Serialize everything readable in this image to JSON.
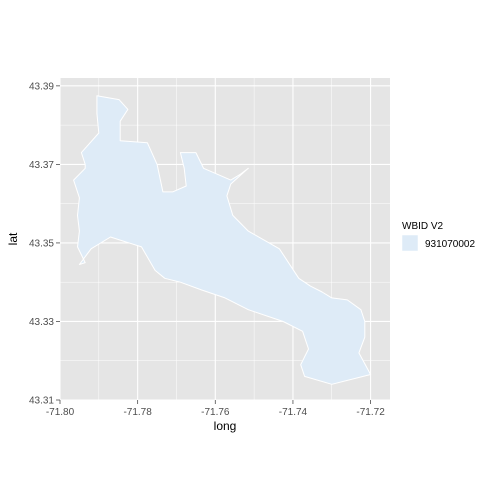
{
  "chart_data": {
    "type": "map",
    "xlabel": "long",
    "ylabel": "lat",
    "xlim": [
      -71.8,
      -71.715
    ],
    "ylim": [
      43.31,
      43.392
    ],
    "x_ticks": [
      -71.8,
      -71.78,
      -71.76,
      -71.74,
      -71.72
    ],
    "x_tick_labels": [
      "-71.80",
      "-71.78",
      "-71.76",
      "-71.74",
      "-71.72"
    ],
    "y_ticks": [
      43.31,
      43.33,
      43.35,
      43.37,
      43.39
    ],
    "y_tick_labels": [
      "43.31",
      "43.33",
      "43.35",
      "43.37",
      "43.39"
    ],
    "grid": true,
    "legend": {
      "title": "WBID V2",
      "position": "right",
      "entries": [
        {
          "label": "931070002",
          "color": "#deebf7"
        }
      ]
    },
    "colors": {
      "panel_background": "#e5e5e5",
      "grid": "#ffffff",
      "fill": "#deebf7",
      "outline": "#ffffff"
    },
    "polygon": [
      [
        -71.7905,
        43.3875
      ],
      [
        -71.7848,
        43.3865
      ],
      [
        -71.7825,
        43.384
      ],
      [
        -71.7845,
        43.381
      ],
      [
        -71.7845,
        43.376
      ],
      [
        -71.7775,
        43.3755
      ],
      [
        -71.775,
        43.37
      ],
      [
        -71.7735,
        43.363
      ],
      [
        -71.771,
        43.363
      ],
      [
        -71.7675,
        43.3645
      ],
      [
        -71.768,
        43.369
      ],
      [
        -71.769,
        43.373
      ],
      [
        -71.765,
        43.373
      ],
      [
        -71.763,
        43.369
      ],
      [
        -71.756,
        43.366
      ],
      [
        -71.7535,
        43.3675
      ],
      [
        -71.7515,
        43.369
      ],
      [
        -71.756,
        43.365
      ],
      [
        -71.757,
        43.362
      ],
      [
        -71.7555,
        43.357
      ],
      [
        -71.7515,
        43.353
      ],
      [
        -71.7435,
        43.3485
      ],
      [
        -71.7385,
        43.341
      ],
      [
        -71.7355,
        43.339
      ],
      [
        -71.7325,
        43.3375
      ],
      [
        -71.73,
        43.336
      ],
      [
        -71.726,
        43.3355
      ],
      [
        -71.7225,
        43.333
      ],
      [
        -71.7215,
        43.33
      ],
      [
        -71.7215,
        43.326
      ],
      [
        -71.723,
        43.322
      ],
      [
        -71.72,
        43.3165
      ],
      [
        -71.73,
        43.314
      ],
      [
        -71.737,
        43.316
      ],
      [
        -71.738,
        43.319
      ],
      [
        -71.736,
        43.323
      ],
      [
        -71.7375,
        43.3275
      ],
      [
        -71.7425,
        43.33
      ],
      [
        -71.7515,
        43.333
      ],
      [
        -71.7575,
        43.336
      ],
      [
        -71.7635,
        43.338
      ],
      [
        -71.769,
        43.34
      ],
      [
        -71.773,
        43.341
      ],
      [
        -71.7755,
        43.343
      ],
      [
        -71.779,
        43.349
      ],
      [
        -71.787,
        43.3515
      ],
      [
        -71.792,
        43.3485
      ],
      [
        -71.795,
        43.3445
      ],
      [
        -71.7935,
        43.345
      ],
      [
        -71.7955,
        43.349
      ],
      [
        -71.795,
        43.353
      ],
      [
        -71.7955,
        43.357
      ],
      [
        -71.795,
        43.3615
      ],
      [
        -71.7965,
        43.366
      ],
      [
        -71.7935,
        43.369
      ],
      [
        -71.7935,
        43.37
      ],
      [
        -71.7945,
        43.373
      ],
      [
        -71.79,
        43.378
      ],
      [
        -71.7905,
        43.383
      ]
    ]
  }
}
